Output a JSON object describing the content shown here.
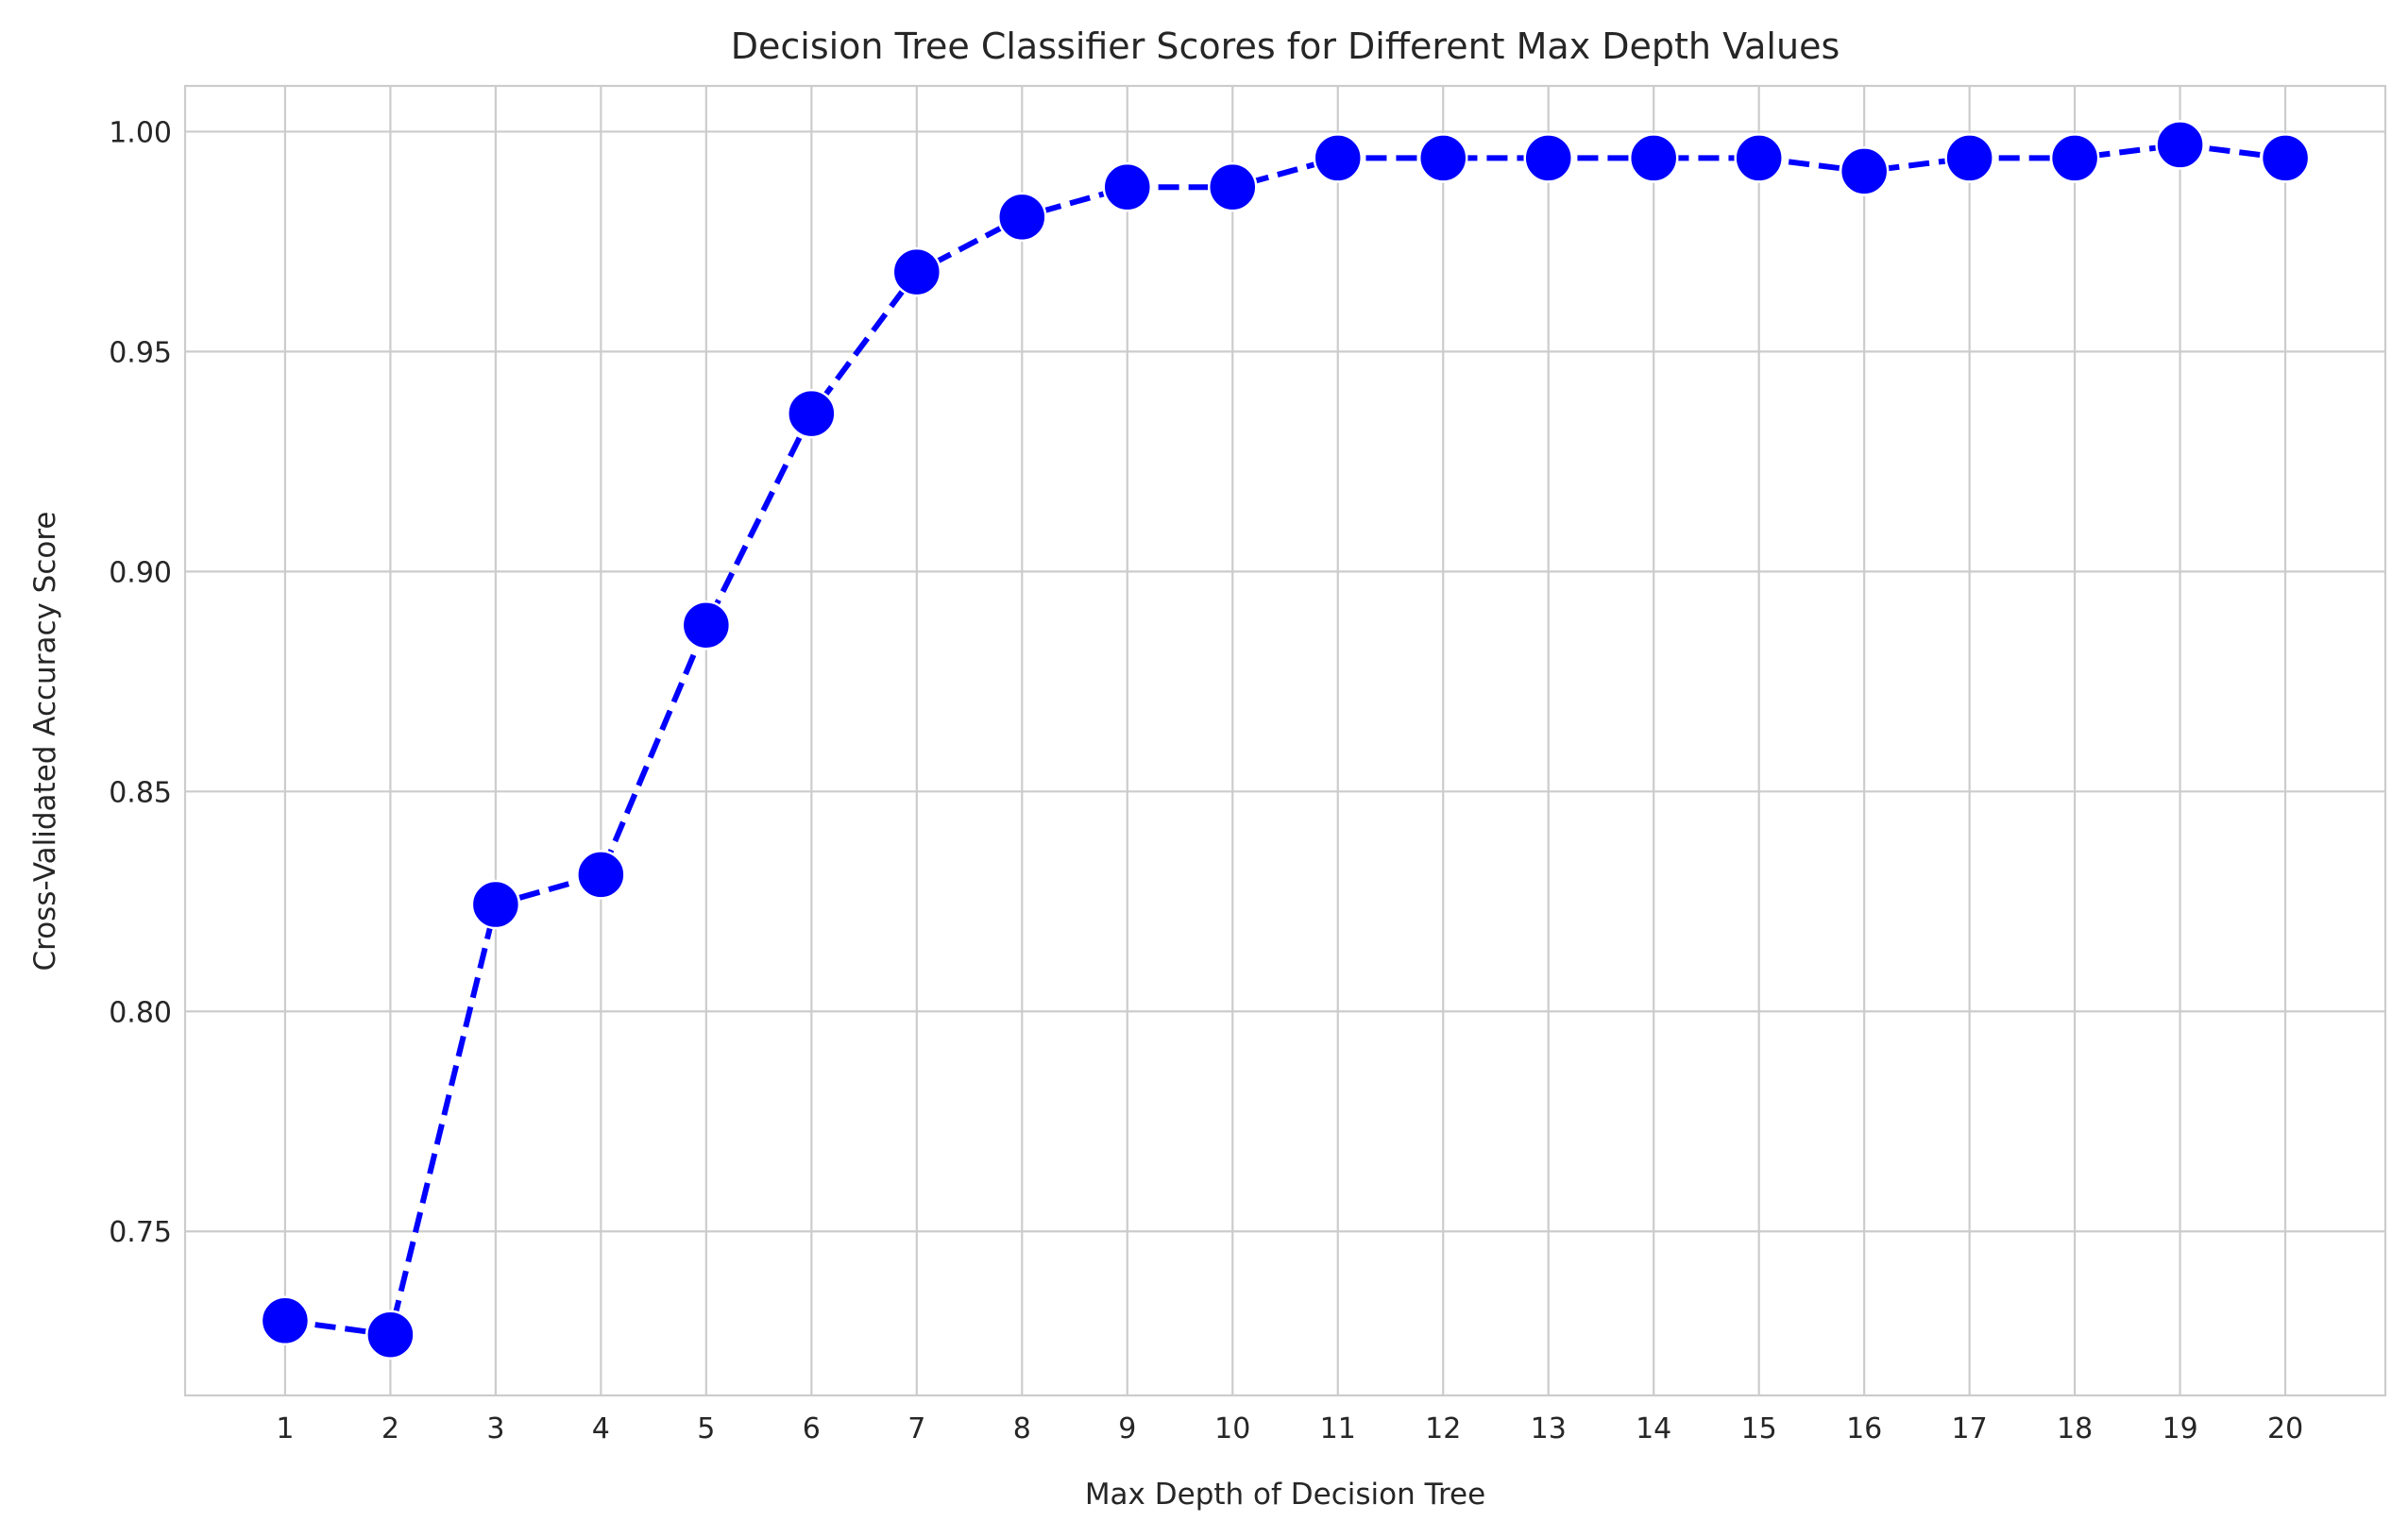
{
  "chart_data": {
    "type": "line",
    "title": "Decision Tree Classifier Scores for Different Max Depth Values",
    "xlabel": "Max Depth of Decision Tree",
    "ylabel": "Cross-Validated Accuracy Score",
    "x": [
      1,
      2,
      3,
      4,
      5,
      6,
      7,
      8,
      9,
      10,
      11,
      12,
      13,
      14,
      15,
      16,
      17,
      18,
      19,
      20
    ],
    "x_tick_labels": [
      "1",
      "2",
      "3",
      "4",
      "5",
      "6",
      "7",
      "8",
      "9",
      "10",
      "11",
      "12",
      "13",
      "14",
      "15",
      "16",
      "17",
      "18",
      "19",
      "20"
    ],
    "series": [
      {
        "values": [
          0.7297,
          0.7265,
          0.8243,
          0.8311,
          0.8878,
          0.9359,
          0.9681,
          0.9806,
          0.9874,
          0.9874,
          0.994,
          0.994,
          0.994,
          0.994,
          0.994,
          0.991,
          0.994,
          0.994,
          0.997,
          0.994
        ],
        "color": "#0000ff",
        "line_style": "dashed",
        "marker": "circle"
      }
    ],
    "y_ticks": [
      0.75,
      0.8,
      0.85,
      0.9,
      0.95,
      1.0
    ],
    "y_tick_labels": [
      "0.75",
      "0.80",
      "0.85",
      "0.90",
      "0.95",
      "1.00"
    ],
    "xlim": [
      0.05,
      20.95
    ],
    "ylim": [
      0.7127,
      1.0104
    ],
    "grid": true,
    "legend": "none"
  }
}
